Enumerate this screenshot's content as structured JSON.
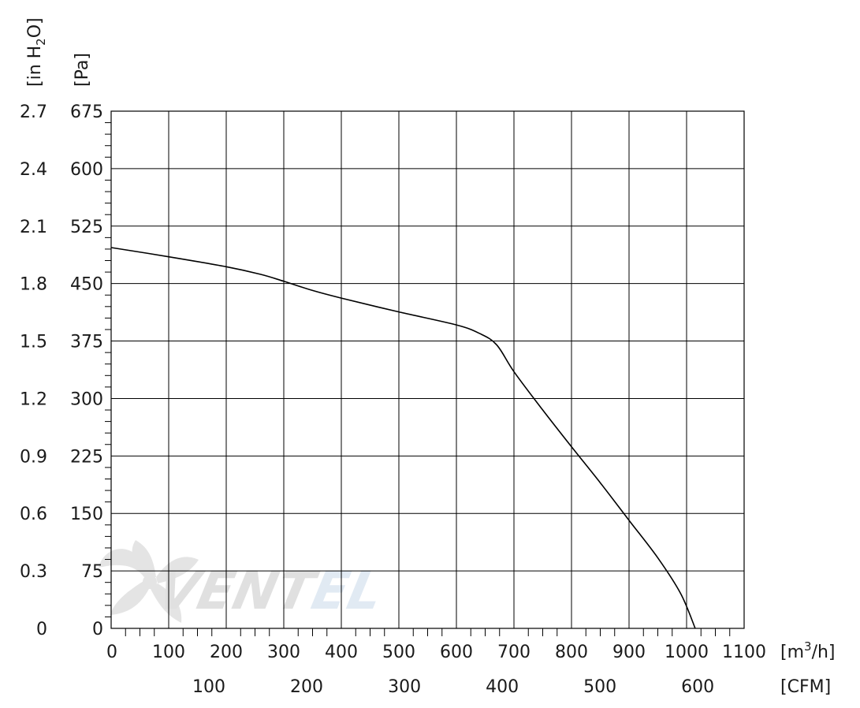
{
  "chart_data": {
    "type": "line",
    "x_axis": {
      "unit_label_prefix": "[m",
      "unit_label_sup": "3",
      "unit_label_suffix": "/h]",
      "range": [
        0,
        1100
      ],
      "ticks": [
        "0",
        "100",
        "200",
        "300",
        "400",
        "500",
        "600",
        "700",
        "800",
        "900",
        "1000",
        "1100"
      ]
    },
    "x2_axis": {
      "unit_label": "[CFM]",
      "ticks": [
        "100",
        "200",
        "300",
        "400",
        "500",
        "600"
      ]
    },
    "y_axis": {
      "unit_label": "[Pa]",
      "range": [
        0,
        675
      ],
      "ticks": [
        "0",
        "75",
        "150",
        "225",
        "300",
        "375",
        "450",
        "525",
        "600",
        "675"
      ]
    },
    "y2_axis": {
      "unit_label_prefix": "[in H",
      "unit_label_sub": "2",
      "unit_label_suffix": "O]",
      "ticks": [
        "0",
        "0.3",
        "0.6",
        "0.9",
        "1.2",
        "1.5",
        "1.8",
        "2.1",
        "2.4",
        "2.7"
      ]
    },
    "grid": true,
    "series": [
      {
        "color": "#000000",
        "points": [
          [
            0,
            497
          ],
          [
            100,
            485
          ],
          [
            200,
            472
          ],
          [
            260,
            462
          ],
          [
            300,
            453
          ],
          [
            350,
            441
          ],
          [
            400,
            431
          ],
          [
            500,
            413
          ],
          [
            600,
            396
          ],
          [
            640,
            385
          ],
          [
            670,
            370
          ],
          [
            700,
            335
          ],
          [
            750,
            285
          ],
          [
            800,
            237
          ],
          [
            850,
            190
          ],
          [
            900,
            141
          ],
          [
            950,
            92
          ],
          [
            990,
            45
          ],
          [
            1015,
            0
          ]
        ]
      }
    ]
  },
  "watermark": {
    "text": "VENTEL",
    "colors": [
      "#c8c8c8",
      "#c9d9ea"
    ]
  }
}
